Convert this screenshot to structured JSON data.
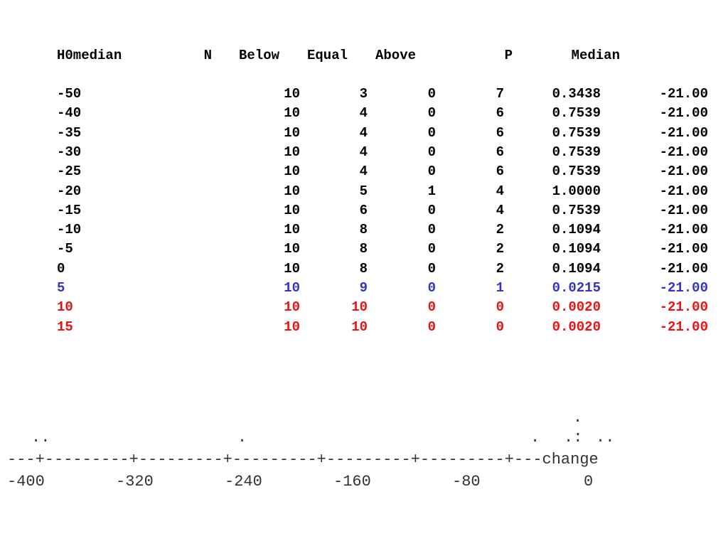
{
  "table": {
    "headers": [
      "H0median",
      "N",
      "Below",
      "Equal",
      "Above",
      "P",
      "Median"
    ],
    "rows": [
      {
        "h0": "-50",
        "n": "10",
        "below": "3",
        "equal": "0",
        "above": "7",
        "p": "0.3438",
        "median": "-21.00",
        "color": "#000000"
      },
      {
        "h0": "-40",
        "n": "10",
        "below": "4",
        "equal": "0",
        "above": "6",
        "p": "0.7539",
        "median": "-21.00",
        "color": "#000000"
      },
      {
        "h0": "-35",
        "n": "10",
        "below": "4",
        "equal": "0",
        "above": "6",
        "p": "0.7539",
        "median": "-21.00",
        "color": "#000000"
      },
      {
        "h0": "-30",
        "n": "10",
        "below": "4",
        "equal": "0",
        "above": "6",
        "p": "0.7539",
        "median": "-21.00",
        "color": "#000000"
      },
      {
        "h0": "-25",
        "n": "10",
        "below": "4",
        "equal": "0",
        "above": "6",
        "p": "0.7539",
        "median": "-21.00",
        "color": "#000000"
      },
      {
        "h0": "-20",
        "n": "10",
        "below": "5",
        "equal": "1",
        "above": "4",
        "p": "1.0000",
        "median": "-21.00",
        "color": "#000000"
      },
      {
        "h0": "-15",
        "n": "10",
        "below": "6",
        "equal": "0",
        "above": "4",
        "p": "0.7539",
        "median": "-21.00",
        "color": "#000000"
      },
      {
        "h0": "-10",
        "n": "10",
        "below": "8",
        "equal": "0",
        "above": "2",
        "p": "0.1094",
        "median": "-21.00",
        "color": "#000000"
      },
      {
        "h0": "-5",
        "n": "10",
        "below": "8",
        "equal": "0",
        "above": "2",
        "p": "0.1094",
        "median": "-21.00",
        "color": "#000000"
      },
      {
        "h0": "0",
        "n": "10",
        "below": "8",
        "equal": "0",
        "above": "2",
        "p": "0.1094",
        "median": "-21.00",
        "color": "#000000"
      },
      {
        "h0": "5",
        "n": "10",
        "below": "9",
        "equal": "0",
        "above": "1",
        "p": "0.0215",
        "median": "-21.00",
        "color": "#3333cc"
      },
      {
        "h0": "10",
        "n": "10",
        "below": "10",
        "equal": "0",
        "above": "0",
        "p": "0.0020",
        "median": "-21.00",
        "color": "#ee1111"
      },
      {
        "h0": "15",
        "n": "10",
        "below": "10",
        "equal": "0",
        "above": "0",
        "p": "0.0020",
        "median": "-21.00",
        "color": "#ee1111"
      }
    ]
  },
  "dotplot": {
    "axis_line": "---+---------+---------+---------+---------+---------+---change",
    "tick_labels": [
      "-400",
      "-320",
      "-240",
      "-160",
      "-80",
      "0"
    ],
    "dots_row1": [
      "..",
      ".",
      ".",
      ".:",
      ".."
    ],
    "dots_row2": [
      "."
    ]
  }
}
